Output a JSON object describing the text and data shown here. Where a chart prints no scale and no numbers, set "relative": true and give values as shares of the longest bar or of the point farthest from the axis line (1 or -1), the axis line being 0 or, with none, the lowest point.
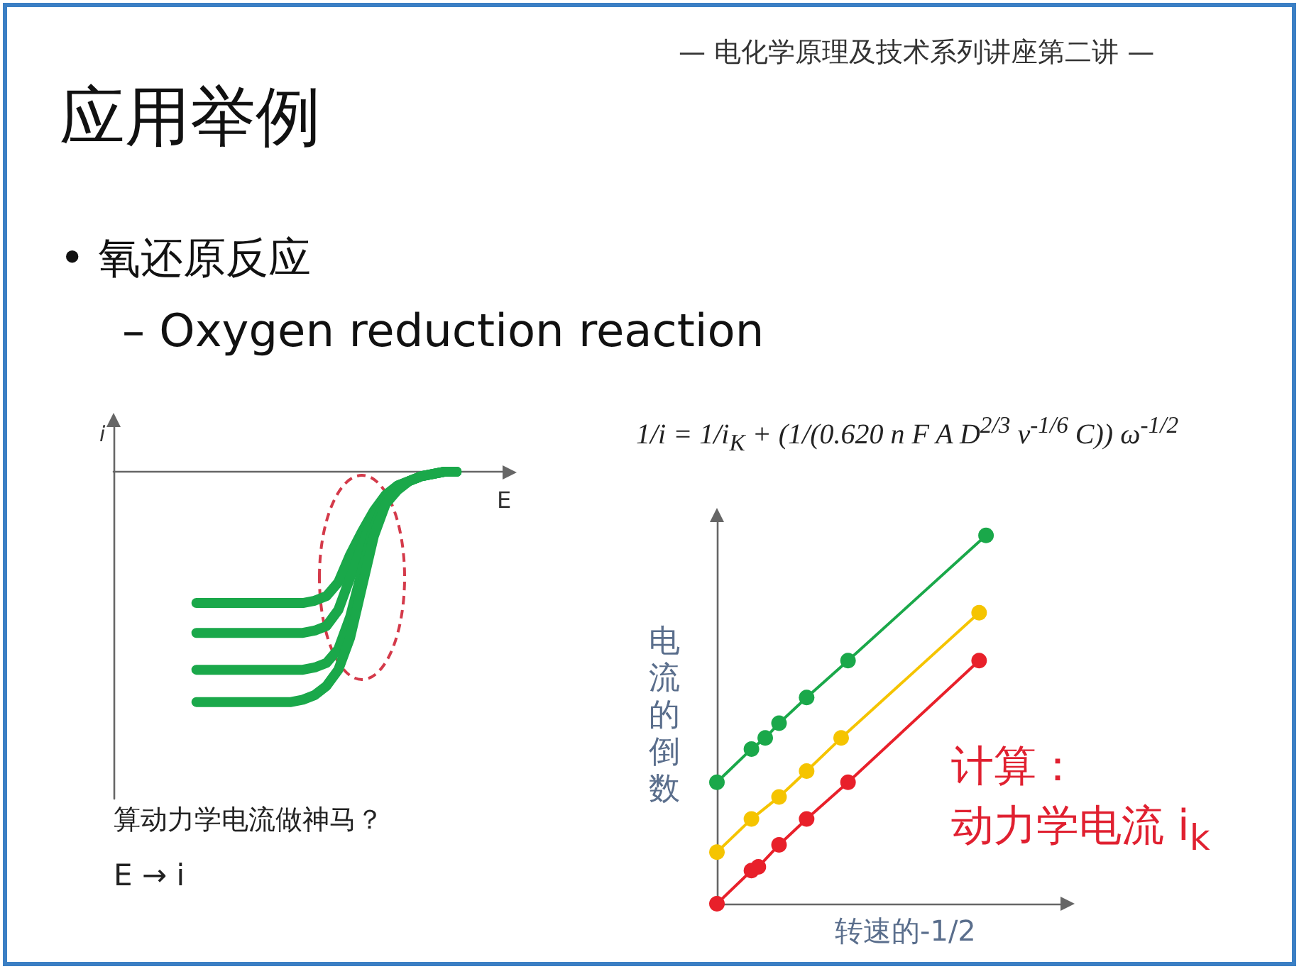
{
  "chart_data": [
    {
      "type": "line",
      "title": "应用举例",
      "xlabel": "E",
      "ylabel": "i",
      "relative": true,
      "line_style": "solid",
      "marker": "none",
      "annotations": [
        "— 电化学原理及技术系列讲座第二讲 —",
        "• 氧还原反应",
        "– Oxygen reduction reaction",
        "算动力学电流做神马？",
        "E → i"
      ],
      "categories": [
        null,
        null,
        null,
        null,
        null,
        null,
        null,
        null,
        null,
        null,
        null,
        null,
        null,
        null,
        null,
        null,
        null,
        null,
        null,
        null,
        null,
        null,
        null,
        null,
        null,
        null,
        null,
        null,
        null,
        null,
        null,
        null,
        null,
        null
      ],
      "series": [
        {
          "color": "#1aa84a",
          "values": [
            null,
            null,
            null,
            null,
            null,
            null,
            null,
            -0.57,
            -0.57,
            -0.57,
            -0.57,
            -0.57,
            -0.57,
            -0.57,
            -0.57,
            -0.57,
            -0.57,
            -0.56,
            -0.54,
            -0.48,
            -0.36,
            -0.26,
            -0.17,
            -0.1,
            -0.06,
            -0.04,
            -0.02,
            -0.01,
            0,
            0,
            null,
            null,
            null,
            null
          ]
        },
        {
          "color": "#1aa84a",
          "values": [
            null,
            null,
            null,
            null,
            null,
            null,
            null,
            -0.7,
            -0.7,
            -0.7,
            -0.7,
            -0.7,
            -0.7,
            -0.7,
            -0.7,
            -0.7,
            -0.7,
            -0.69,
            -0.67,
            -0.6,
            -0.46,
            -0.32,
            -0.19,
            -0.11,
            -0.06,
            -0.04,
            -0.02,
            -0.01,
            0,
            0,
            null,
            null,
            null,
            null
          ]
        },
        {
          "color": "#1aa84a",
          "values": [
            null,
            null,
            null,
            null,
            null,
            null,
            null,
            -0.86,
            -0.86,
            -0.86,
            -0.86,
            -0.86,
            -0.86,
            -0.86,
            -0.86,
            -0.86,
            -0.86,
            -0.85,
            -0.83,
            -0.77,
            -0.63,
            -0.43,
            -0.24,
            -0.12,
            -0.07,
            -0.04,
            -0.02,
            -0.01,
            0,
            0,
            null,
            null,
            null,
            null
          ]
        },
        {
          "color": "#1aa84a",
          "values": [
            null,
            null,
            null,
            null,
            null,
            null,
            null,
            -1,
            -1,
            -1,
            -1,
            -1,
            -1,
            -1,
            -1,
            -1,
            -0.99,
            -0.97,
            -0.93,
            -0.86,
            -0.72,
            -0.5,
            -0.28,
            -0.14,
            -0.08,
            -0.04,
            -0.02,
            -0.01,
            0,
            0,
            null,
            null,
            null,
            null
          ]
        }
      ]
    },
    {
      "type": "line",
      "xlabel": "转速的-1/2",
      "ylabel": "电流的倒数",
      "relative": true,
      "marker": "circle",
      "line_style": "solid",
      "annotations": [
        "1/i = 1/i$_{K}$ + (1/(0.620 n F A D$^{2/3}$ ν$^{-1/6}$ C)) ω$^{-1/2}$",
        "计算：",
        "动力学电流 i$_{k}$"
      ],
      "categories": [
        null,
        null,
        null,
        null,
        null,
        null,
        null,
        null,
        null,
        null,
        null,
        null,
        null,
        null,
        null,
        null,
        null,
        null,
        null,
        null,
        null,
        null,
        null,
        null,
        null,
        null,
        null,
        null,
        null,
        null,
        null,
        null,
        null,
        null,
        null,
        null,
        null,
        null,
        null,
        null,
        null,
        null,
        null,
        null,
        null,
        null,
        null,
        null,
        null,
        null,
        null
      ],
      "series": [
        {
          "color": "#1aa84a",
          "values": [
            0.33,
            null,
            null,
            null,
            null,
            0.42,
            null,
            0.45,
            null,
            0.49,
            null,
            null,
            null,
            0.56,
            null,
            null,
            null,
            null,
            null,
            0.66,
            null,
            null,
            null,
            null,
            null,
            null,
            null,
            null,
            null,
            null,
            null,
            null,
            null,
            null,
            null,
            null,
            null,
            null,
            null,
            1,
            null,
            null,
            null,
            null,
            null,
            null,
            null,
            null,
            null,
            null,
            null
          ]
        },
        {
          "color": "#f5c400",
          "values": [
            0.14,
            null,
            null,
            null,
            null,
            0.23,
            null,
            null,
            null,
            0.29,
            null,
            null,
            null,
            0.36,
            null,
            null,
            null,
            null,
            0.45,
            null,
            null,
            null,
            null,
            null,
            null,
            null,
            null,
            null,
            null,
            null,
            null,
            null,
            null,
            null,
            null,
            null,
            null,
            null,
            0.79,
            null,
            null,
            null,
            null,
            null,
            null,
            null,
            null,
            null,
            null,
            null,
            null
          ]
        },
        {
          "color": "#e8202a",
          "values": [
            0,
            null,
            null,
            null,
            null,
            0.09,
            0.1,
            null,
            null,
            0.16,
            null,
            null,
            null,
            0.23,
            null,
            null,
            null,
            null,
            null,
            0.33,
            null,
            null,
            null,
            null,
            null,
            null,
            null,
            null,
            null,
            null,
            null,
            null,
            null,
            null,
            null,
            null,
            null,
            null,
            0.66,
            null,
            null,
            null,
            null,
            null,
            null,
            null,
            null,
            null,
            null,
            null,
            null
          ]
        }
      ]
    }
  ]
}
